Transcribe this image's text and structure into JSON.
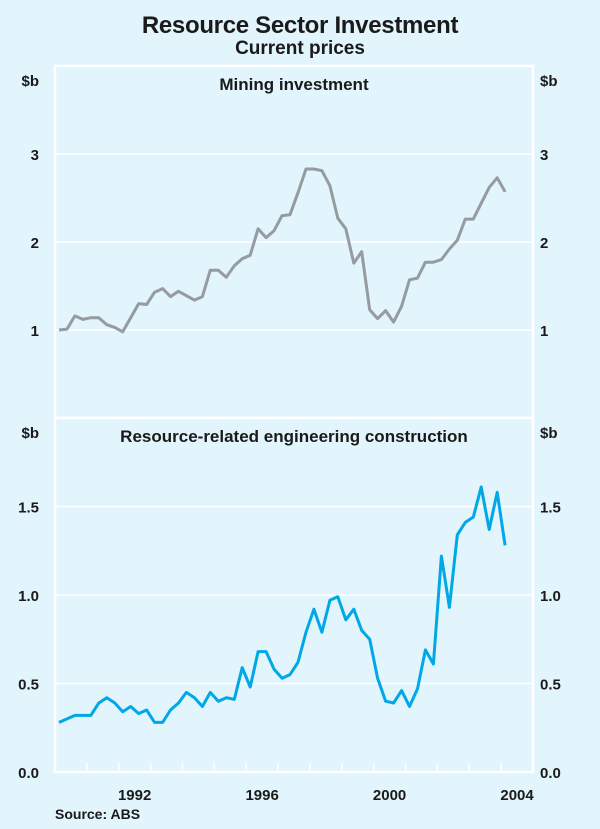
{
  "title": "Resource Sector Investment",
  "subtitle": "Current prices",
  "source": "Source: ABS",
  "colors": {
    "background": "#e2f4fc",
    "grid": "#ffffff",
    "mining_line": "#959b9f",
    "engineering_line": "#00a8e8"
  },
  "chart_data": [
    {
      "type": "line",
      "title": "Mining investment",
      "ylabel_left": "$b",
      "ylabel_right": "$b",
      "ylim": [
        0,
        4
      ],
      "yticks": [
        1,
        2,
        3
      ],
      "ytick_labels": [
        "1",
        "2",
        "3"
      ],
      "grid": true,
      "x_frequency": "quarterly",
      "x_start": "Sep quarter 1989",
      "x_end": "Sep quarter 2003",
      "series": [
        {
          "name": "Mining investment",
          "values": [
            1.0,
            1.01,
            1.16,
            1.12,
            1.14,
            1.14,
            1.06,
            1.03,
            0.98,
            1.14,
            1.3,
            1.29,
            1.43,
            1.47,
            1.38,
            1.44,
            1.39,
            1.34,
            1.38,
            1.68,
            1.68,
            1.6,
            1.73,
            1.81,
            1.85,
            2.15,
            2.05,
            2.13,
            2.3,
            2.31,
            2.56,
            2.83,
            2.83,
            2.81,
            2.64,
            2.27,
            2.15,
            1.76,
            1.89,
            1.23,
            1.13,
            1.22,
            1.09,
            1.27,
            1.57,
            1.59,
            1.77,
            1.77,
            1.8,
            1.92,
            2.02,
            2.26,
            2.26,
            2.44,
            2.62,
            2.73,
            2.57
          ]
        }
      ]
    },
    {
      "type": "line",
      "title": "Resource-related engineering construction",
      "ylabel_left": "$b",
      "ylabel_right": "$b",
      "ylim": [
        0,
        2
      ],
      "yticks": [
        0.0,
        0.5,
        1.0,
        1.5
      ],
      "ytick_labels": [
        "0.0",
        "0.5",
        "1.0",
        "1.5"
      ],
      "grid": true,
      "xlim_years": [
        1990,
        2005
      ],
      "xtick_labels": [
        "1992",
        "1996",
        "2000",
        "2004"
      ],
      "x_frequency": "quarterly",
      "x_start": "Sep quarter 1989",
      "x_end": "Sep quarter 2003",
      "series": [
        {
          "name": "Resource-related engineering construction",
          "values": [
            0.28,
            0.3,
            0.32,
            0.32,
            0.32,
            0.39,
            0.42,
            0.39,
            0.34,
            0.37,
            0.33,
            0.35,
            0.28,
            0.28,
            0.35,
            0.39,
            0.45,
            0.42,
            0.37,
            0.45,
            0.4,
            0.42,
            0.41,
            0.59,
            0.48,
            0.68,
            0.68,
            0.58,
            0.53,
            0.55,
            0.62,
            0.79,
            0.92,
            0.79,
            0.97,
            0.99,
            0.86,
            0.92,
            0.8,
            0.75,
            0.53,
            0.4,
            0.39,
            0.46,
            0.37,
            0.47,
            0.69,
            0.61,
            1.22,
            0.93,
            1.34,
            1.41,
            1.44,
            1.61,
            1.37,
            1.58,
            1.28
          ]
        }
      ]
    }
  ]
}
